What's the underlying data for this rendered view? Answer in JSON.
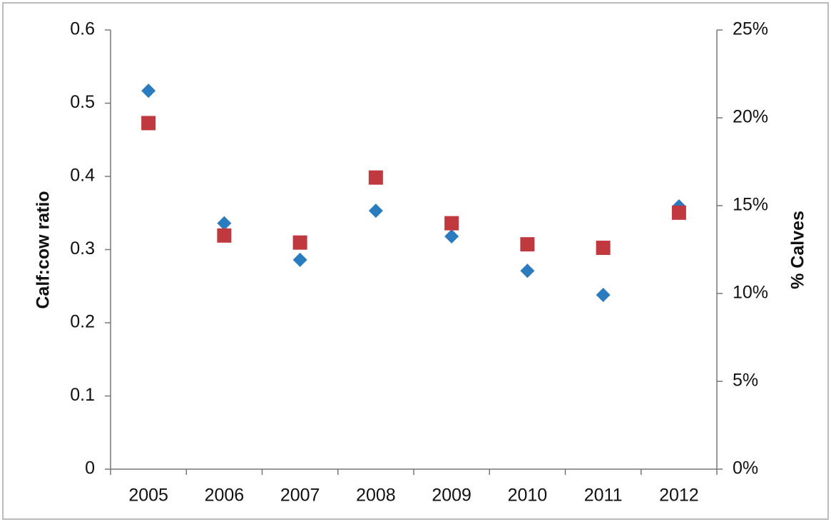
{
  "chart_data": {
    "type": "scatter",
    "y_label": "Calf:cow ratio",
    "y2_label": "% Calves",
    "categories": [
      "2005",
      "2006",
      "2007",
      "2008",
      "2009",
      "2010",
      "2011",
      "2012"
    ],
    "series": [
      {
        "color": "#2b7bbf",
        "marker": "diamond",
        "values": [
          0.517,
          0.336,
          0.286,
          0.353,
          0.318,
          0.271,
          0.238,
          0.359
        ]
      },
      {
        "color": "#c0393f",
        "marker": "square",
        "axis": "y2",
        "values": [
          19.7,
          13.3,
          12.9,
          16.6,
          14.0,
          12.8,
          12.6,
          14.6
        ]
      }
    ],
    "ylim": [
      0,
      0.6
    ],
    "yticks": [
      0,
      0.1,
      0.2,
      0.3,
      0.4,
      0.5,
      0.6
    ],
    "y2lim": [
      0,
      25
    ],
    "y2ticks": [
      {
        "value": 0,
        "label": "0%"
      },
      {
        "value": 5,
        "label": "5%"
      },
      {
        "value": 10,
        "label": "10%"
      },
      {
        "value": 15,
        "label": "15%"
      },
      {
        "value": 20,
        "label": "20%"
      },
      {
        "value": 25,
        "label": "25%"
      }
    ],
    "grid": false
  }
}
